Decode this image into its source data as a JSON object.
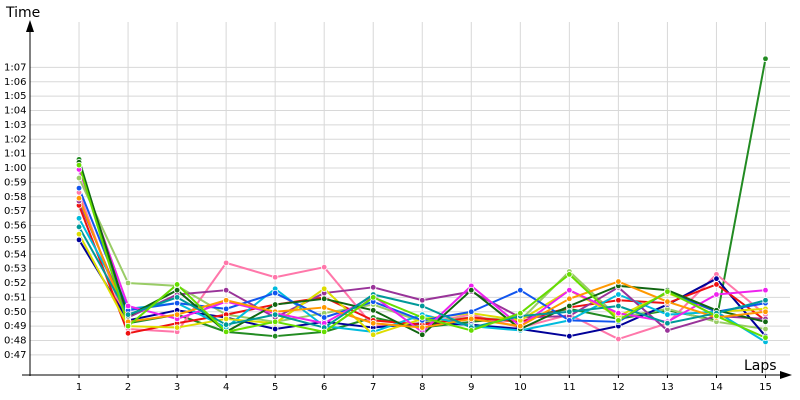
{
  "chart_data": {
    "type": "line",
    "y_label": "Time",
    "x_label": "Laps",
    "xlim": [
      0,
      15.5
    ],
    "xticks": [
      1,
      2,
      3,
      4,
      5,
      6,
      7,
      8,
      9,
      10,
      11,
      12,
      13,
      14,
      15
    ],
    "ylim": [
      45.6,
      69.6
    ],
    "yticks": [
      {
        "value": 47,
        "label": "0:47"
      },
      {
        "value": 48,
        "label": "0:48"
      },
      {
        "value": 49,
        "label": "0:49"
      },
      {
        "value": 50,
        "label": "0:50"
      },
      {
        "value": 51,
        "label": "0:51"
      },
      {
        "value": 52,
        "label": "0:52"
      },
      {
        "value": 53,
        "label": "0:53"
      },
      {
        "value": 54,
        "label": "0:54"
      },
      {
        "value": 55,
        "label": "0:55"
      },
      {
        "value": 56,
        "label": "0:56"
      },
      {
        "value": 57,
        "label": "0:57"
      },
      {
        "value": 58,
        "label": "0:58"
      },
      {
        "value": 59,
        "label": "0:59"
      },
      {
        "value": 60,
        "label": "1:00"
      },
      {
        "value": 61,
        "label": "1:01"
      },
      {
        "value": 62,
        "label": "1:02"
      },
      {
        "value": 63,
        "label": "1:03"
      },
      {
        "value": 64,
        "label": "1:04"
      },
      {
        "value": 65,
        "label": "1:05"
      },
      {
        "value": 66,
        "label": "1:06"
      },
      {
        "value": 67,
        "label": "1:07"
      }
    ],
    "grid": true,
    "x": [
      1,
      2,
      3,
      4,
      5,
      6,
      7,
      8,
      9,
      10,
      11,
      12,
      13,
      14,
      15
    ],
    "series": [
      {
        "color": "#228b22",
        "values": [
          60.6,
          49.2,
          49.8,
          48.6,
          48.3,
          48.6,
          49.6,
          48.9,
          49.3,
          49.6,
          50.2,
          49.5,
          50.1,
          49.4,
          67.6
        ]
      },
      {
        "color": "#ff77aa",
        "values": [
          58.3,
          48.8,
          48.6,
          53.4,
          52.4,
          53.1,
          49.0,
          49.2,
          49.8,
          48.9,
          49.8,
          48.1,
          49.2,
          52.6,
          49.8
        ]
      },
      {
        "color": "#99cc66",
        "values": [
          59.3,
          52.0,
          51.8,
          49.8,
          49.3,
          49.9,
          50.5,
          49.3,
          49.6,
          49.4,
          52.8,
          49.6,
          50.2,
          49.3,
          48.8
        ]
      },
      {
        "color": "#000099",
        "values": [
          55.0,
          49.4,
          50.1,
          49.6,
          48.8,
          49.3,
          48.9,
          49.2,
          49.1,
          48.8,
          48.3,
          49.0,
          50.5,
          52.3,
          48.3
        ]
      },
      {
        "color": "#ee1111",
        "values": [
          57.4,
          48.5,
          49.2,
          49.8,
          50.5,
          51.0,
          49.4,
          49.1,
          49.6,
          49.3,
          50.3,
          50.8,
          50.6,
          51.9,
          49.4
        ]
      },
      {
        "color": "#00bbdd",
        "values": [
          56.5,
          50.2,
          50.6,
          48.9,
          51.6,
          49.0,
          48.6,
          49.8,
          49.0,
          48.7,
          49.4,
          51.2,
          49.8,
          50.0,
          47.9
        ]
      },
      {
        "color": "#993399",
        "values": [
          57.7,
          49.6,
          51.2,
          51.5,
          49.6,
          51.3,
          51.7,
          50.8,
          51.4,
          49.6,
          49.7,
          51.7,
          48.7,
          49.7,
          49.5
        ]
      },
      {
        "color": "#dddd00",
        "values": [
          55.4,
          49.0,
          48.9,
          49.5,
          49.2,
          51.6,
          48.4,
          49.5,
          49.9,
          49.4,
          51.5,
          49.7,
          51.3,
          50.0,
          50.2
        ]
      },
      {
        "color": "#1155ee",
        "values": [
          58.6,
          50.1,
          50.6,
          50.2,
          51.3,
          49.6,
          50.7,
          49.4,
          50.0,
          51.5,
          49.4,
          49.3,
          51.4,
          50.0,
          50.6
        ]
      },
      {
        "color": "#ee22ee",
        "values": [
          59.9,
          50.4,
          49.5,
          50.7,
          49.9,
          49.2,
          51.1,
          48.6,
          51.8,
          49.0,
          51.5,
          49.9,
          49.3,
          51.2,
          51.5
        ]
      },
      {
        "color": "#116611",
        "values": [
          60.4,
          49.7,
          51.5,
          48.6,
          50.5,
          50.9,
          50.1,
          48.4,
          51.5,
          48.8,
          50.4,
          51.8,
          51.5,
          50.1,
          49.3
        ]
      },
      {
        "color": "#ff9900",
        "values": [
          57.9,
          49.3,
          49.8,
          50.8,
          50.0,
          50.3,
          49.2,
          48.9,
          49.5,
          49.0,
          50.9,
          52.1,
          50.7,
          49.6,
          50.0
        ]
      },
      {
        "color": "#009999",
        "values": [
          55.9,
          49.8,
          51.0,
          49.1,
          49.8,
          48.9,
          51.2,
          50.4,
          48.9,
          49.7,
          50.0,
          50.4,
          49.2,
          49.9,
          50.8
        ]
      },
      {
        "color": "#66dd00",
        "values": [
          60.2,
          49.0,
          51.9,
          48.6,
          49.3,
          48.6,
          51.0,
          49.6,
          48.7,
          49.9,
          52.6,
          49.4,
          51.4,
          49.7,
          48.2
        ]
      }
    ]
  }
}
